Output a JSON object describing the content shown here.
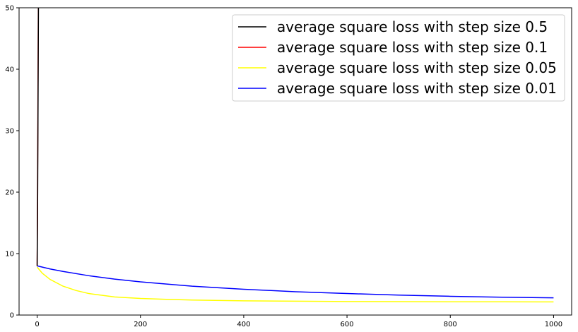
{
  "chart_data": {
    "type": "line",
    "title": "",
    "xlabel": "",
    "ylabel": "",
    "xlim": [
      -35,
      1035
    ],
    "ylim": [
      0,
      50
    ],
    "xticks": [
      0,
      200,
      400,
      600,
      800,
      1000
    ],
    "yticks": [
      0,
      10,
      20,
      30,
      40,
      50
    ],
    "grid": false,
    "legend_position": "top-right",
    "series": [
      {
        "name": "average square loss with step size 0.5",
        "color": "#000000",
        "x": [
          0,
          1,
          2,
          3
        ],
        "y": [
          8.0,
          20.0,
          40.0,
          60.0
        ]
      },
      {
        "name": "average square loss with step size 0.1",
        "color": "#ff0000",
        "x": [
          0,
          1,
          2,
          3
        ],
        "y": [
          8.0,
          25.0,
          45.0,
          60.0
        ]
      },
      {
        "name": "average square loss with step size 0.05",
        "color": "#ffff00",
        "x": [
          0,
          10,
          25,
          50,
          75,
          100,
          150,
          200,
          250,
          300,
          400,
          500,
          600,
          700,
          800,
          900,
          1000
        ],
        "y": [
          7.8,
          6.8,
          5.8,
          4.7,
          4.0,
          3.5,
          2.95,
          2.7,
          2.55,
          2.45,
          2.32,
          2.25,
          2.2,
          2.18,
          2.16,
          2.15,
          2.14
        ]
      },
      {
        "name": "average square loss with step size 0.01",
        "color": "#0000ff",
        "x": [
          0,
          10,
          25,
          50,
          100,
          150,
          200,
          300,
          400,
          500,
          600,
          700,
          800,
          900,
          1000
        ],
        "y": [
          8.0,
          7.8,
          7.5,
          7.1,
          6.4,
          5.85,
          5.4,
          4.7,
          4.2,
          3.8,
          3.5,
          3.25,
          3.05,
          2.9,
          2.8
        ]
      }
    ]
  }
}
